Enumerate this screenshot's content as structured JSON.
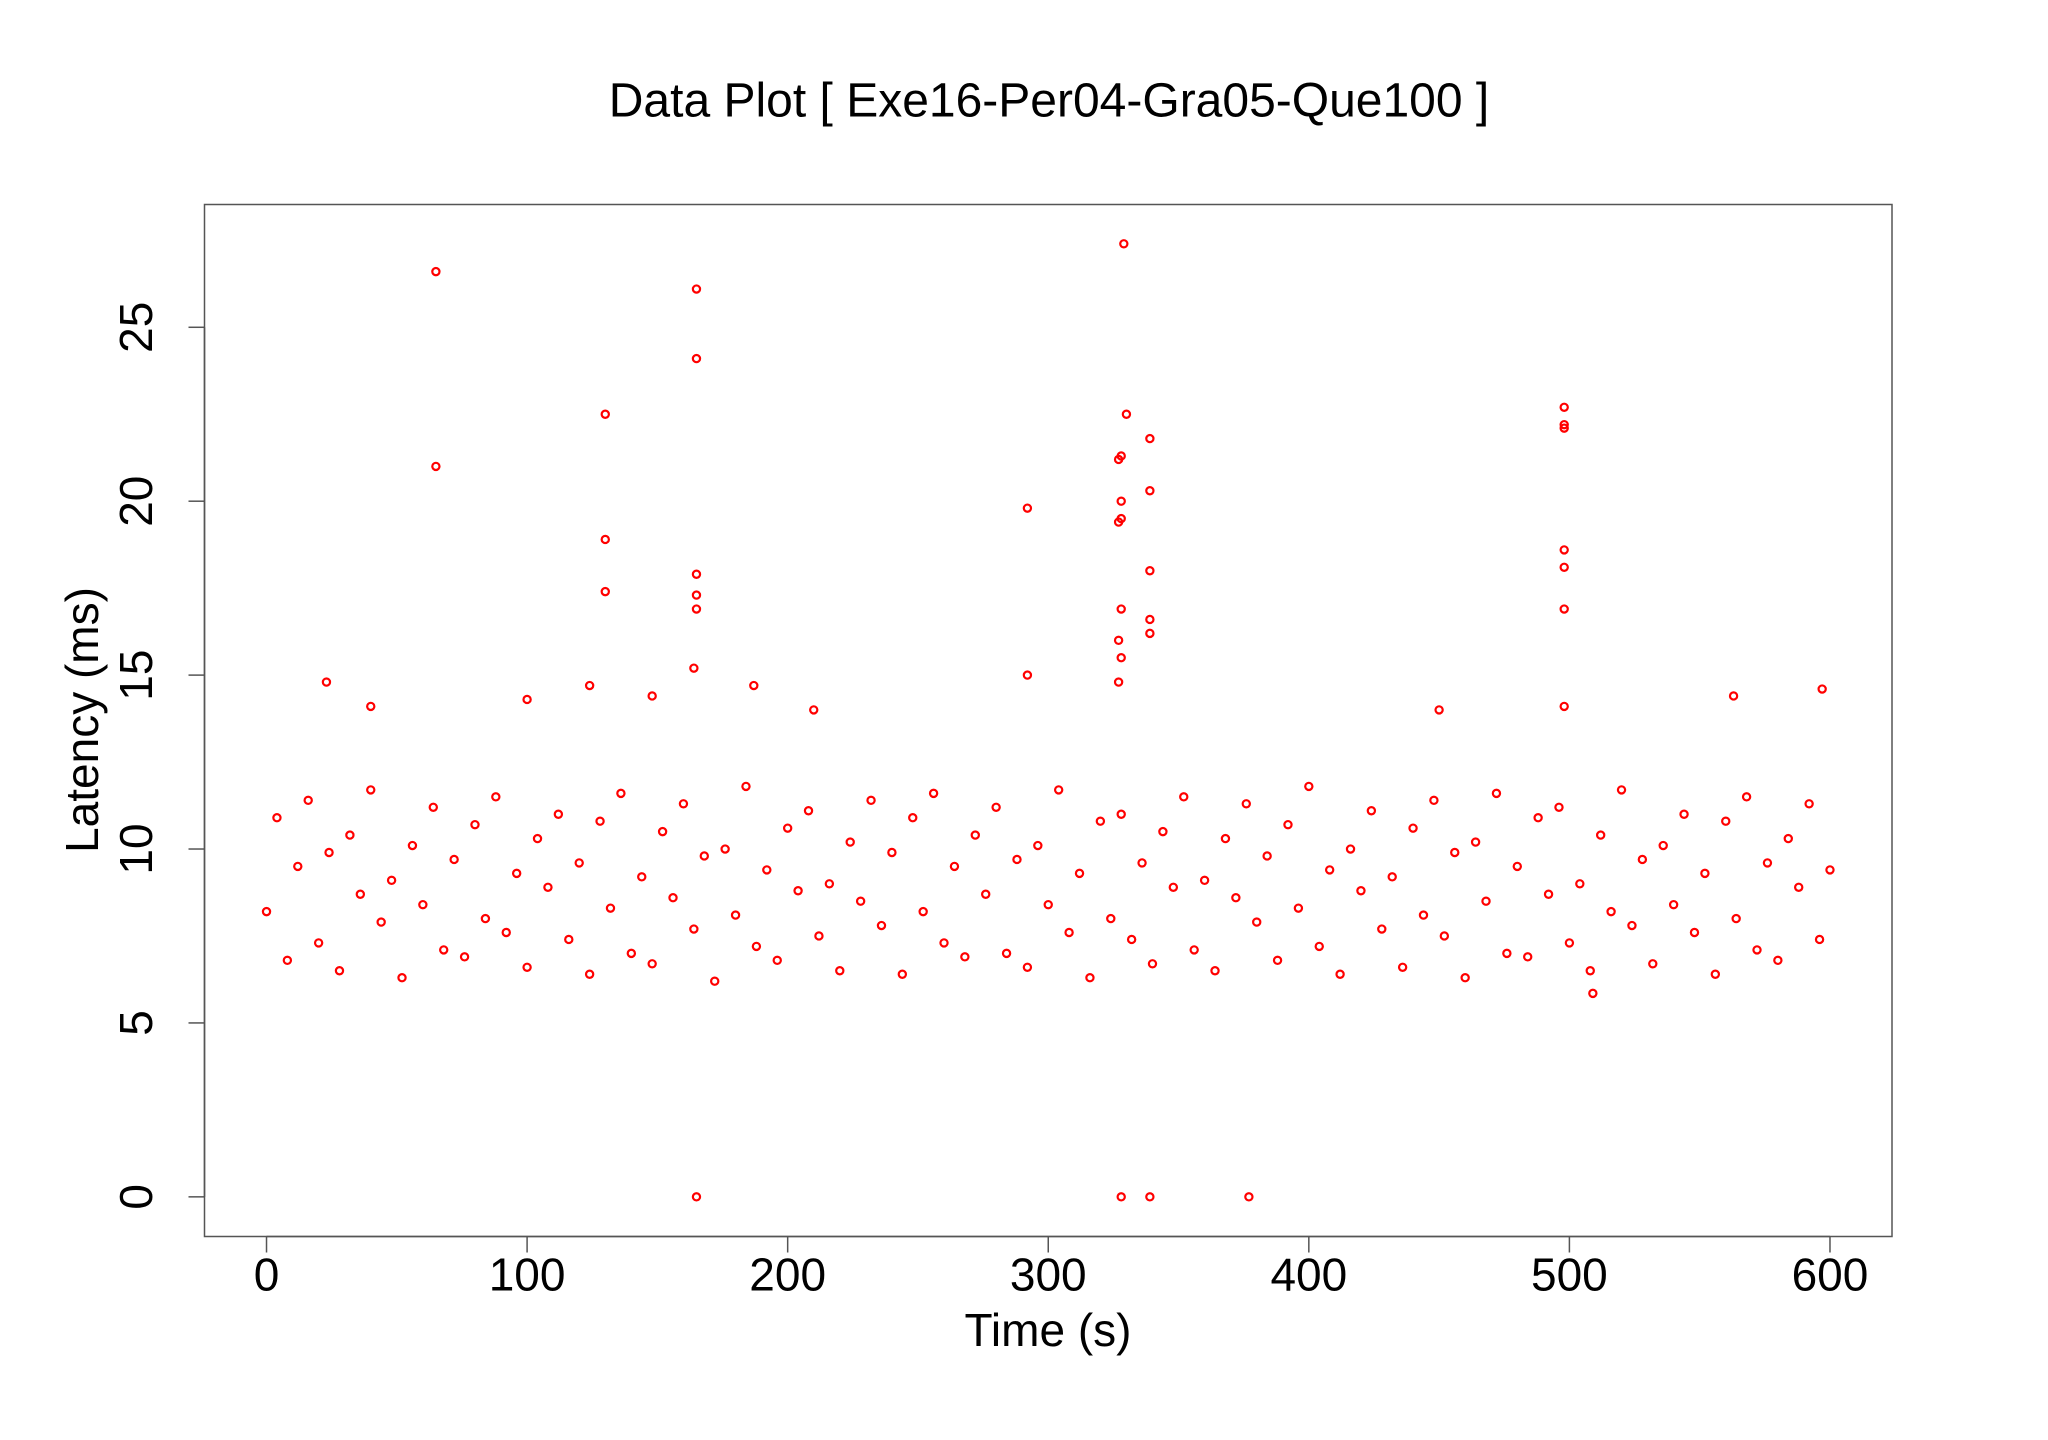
{
  "chart_data": {
    "type": "scatter",
    "title": "Data Plot [ Exe16-Per04-Gra05-Que100 ]",
    "x_label": "Time (s)",
    "y_label": "Latency (ms)",
    "color": "#ff0000",
    "xlim": [
      -23.8,
      623.8
    ],
    "ylim": [
      -1.14,
      28.53
    ],
    "xticks": [
      0,
      100,
      200,
      300,
      400,
      500,
      600
    ],
    "yticks": [
      0,
      5,
      10,
      15,
      20,
      25
    ],
    "x": [
      0,
      4,
      8,
      12,
      16,
      20,
      24,
      28,
      32,
      36,
      40,
      44,
      48,
      52,
      56,
      60,
      64,
      68,
      72,
      76,
      80,
      84,
      88,
      92,
      96,
      100,
      104,
      108,
      112,
      116,
      120,
      124,
      128,
      132,
      136,
      140,
      144,
      148,
      152,
      156,
      160,
      164,
      168,
      172,
      176,
      180,
      184,
      188,
      192,
      196,
      200,
      204,
      208,
      212,
      216,
      220,
      224,
      228,
      232,
      236,
      240,
      244,
      248,
      252,
      256,
      260,
      264,
      268,
      272,
      276,
      280,
      284,
      288,
      292,
      296,
      300,
      304,
      308,
      312,
      316,
      320,
      324,
      328,
      332,
      336,
      340,
      344,
      348,
      352,
      356,
      360,
      364,
      368,
      372,
      376,
      380,
      384,
      388,
      392,
      396,
      400,
      404,
      408,
      412,
      416,
      420,
      424,
      428,
      432,
      436,
      440,
      444,
      448,
      452,
      456,
      460,
      464,
      468,
      472,
      476,
      480,
      484,
      488,
      492,
      496,
      500,
      504,
      508,
      512,
      516,
      520,
      524,
      528,
      532,
      536,
      540,
      544,
      548,
      552,
      556,
      560,
      564,
      568,
      572,
      576,
      580,
      584,
      588,
      592,
      596,
      600,
      65,
      65,
      130,
      130,
      130,
      165,
      165,
      165,
      165,
      165,
      164,
      165,
      329,
      330,
      327,
      328,
      328,
      327,
      328,
      328,
      327,
      328,
      327,
      292,
      292,
      339,
      339,
      339,
      339,
      339,
      328,
      339,
      377,
      498,
      498,
      498,
      498,
      498,
      498,
      498,
      23,
      100,
      124,
      148,
      187,
      563,
      597,
      509,
      40,
      450,
      210
    ],
    "values": [
      8.2,
      10.9,
      6.8,
      9.5,
      11.4,
      7.3,
      9.9,
      6.5,
      10.4,
      8.7,
      11.7,
      7.9,
      9.1,
      6.3,
      10.1,
      8.4,
      11.2,
      7.1,
      9.7,
      6.9,
      10.7,
      8.0,
      11.5,
      7.6,
      9.3,
      6.6,
      10.3,
      8.9,
      11.0,
      7.4,
      9.6,
      6.4,
      10.8,
      8.3,
      11.6,
      7.0,
      9.2,
      6.7,
      10.5,
      8.6,
      11.3,
      7.7,
      9.8,
      6.2,
      10.0,
      8.1,
      11.8,
      7.2,
      9.4,
      6.8,
      10.6,
      8.8,
      11.1,
      7.5,
      9.0,
      6.5,
      10.2,
      8.5,
      11.4,
      7.8,
      9.9,
      6.4,
      10.9,
      8.2,
      11.6,
      7.3,
      9.5,
      6.9,
      10.4,
      8.7,
      11.2,
      7.0,
      9.7,
      6.6,
      10.1,
      8.4,
      11.7,
      7.6,
      9.3,
      6.3,
      10.8,
      8.0,
      11.0,
      7.4,
      9.6,
      6.7,
      10.5,
      8.9,
      11.5,
      7.1,
      9.1,
      6.5,
      10.3,
      8.6,
      11.3,
      7.9,
      9.8,
      6.8,
      10.7,
      8.3,
      11.8,
      7.2,
      9.4,
      6.4,
      10.0,
      8.8,
      11.1,
      7.7,
      9.2,
      6.6,
      10.6,
      8.1,
      11.4,
      7.5,
      9.9,
      6.3,
      10.2,
      8.5,
      11.6,
      7.0,
      9.5,
      6.9,
      10.9,
      8.7,
      11.2,
      7.3,
      9.0,
      6.5,
      10.4,
      8.2,
      11.7,
      7.8,
      9.7,
      6.7,
      10.1,
      8.4,
      11.0,
      7.6,
      9.3,
      6.4,
      10.8,
      8.0,
      11.5,
      7.1,
      9.6,
      6.8,
      10.3,
      8.9,
      11.3,
      7.4,
      9.4,
      26.6,
      21.0,
      22.5,
      18.9,
      17.4,
      26.1,
      24.1,
      17.9,
      17.3,
      16.9,
      15.2,
      0,
      27.4,
      22.5,
      21.2,
      21.3,
      20.0,
      19.4,
      19.5,
      16.9,
      16.0,
      15.5,
      14.8,
      19.8,
      15.0,
      21.8,
      20.3,
      18.0,
      16.6,
      16.2,
      0,
      0,
      0,
      22.7,
      22.1,
      22.2,
      18.6,
      18.1,
      16.9,
      14.1,
      14.8,
      14.3,
      14.7,
      14.4,
      14.7,
      14.4,
      14.6,
      5.85,
      14.1,
      14.0,
      14.0
    ]
  }
}
